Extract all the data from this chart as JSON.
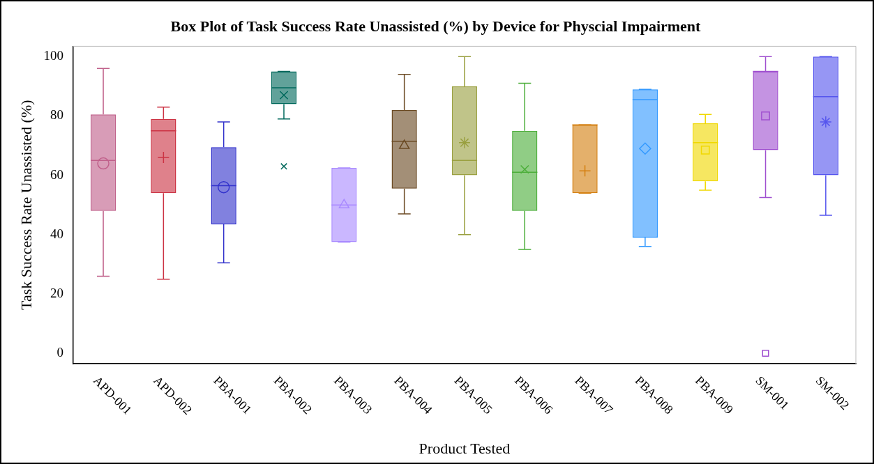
{
  "chart_data": {
    "type": "box",
    "title": "Box Plot of Task Success Rate Unassisted (%) by Device for Physcial Impairment",
    "xlabel": "Product Tested",
    "ylabel": "Task Success Rate Unassisted (%)",
    "categories": [
      "APD-001",
      "APD-002",
      "PBA-001",
      "PBA-002",
      "PBA-003",
      "PBA-004",
      "PBA-005",
      "PBA-006",
      "PBA-007",
      "PBA-008",
      "PBA-009",
      "SM-001",
      "SM-002"
    ],
    "colors": [
      "#c0608a",
      "#cc3344",
      "#3333cc",
      "#00695c",
      "#a98aff",
      "#6b4a23",
      "#9aa040",
      "#4cae3a",
      "#d47f10",
      "#3399ff",
      "#f0d800",
      "#a050d0",
      "#5555ee"
    ],
    "boxes": [
      {
        "low": 26,
        "q1": 48,
        "median": 65,
        "q3": 80.5,
        "high": 96,
        "mean": 64
      },
      {
        "low": 25,
        "q1": 54,
        "median": 75,
        "q3": 79,
        "high": 83,
        "mean": 66
      },
      {
        "low": 30.5,
        "q1": 43.5,
        "median": 56.5,
        "q3": 69.5,
        "high": 78,
        "mean": 56
      },
      {
        "low": 79,
        "q1": 84,
        "median": 89.5,
        "q3": 95,
        "high": 95,
        "mean": 87,
        "outliers": [
          63
        ]
      },
      {
        "low": 37.5,
        "q1": 37.5,
        "median": 50,
        "q3": 62.5,
        "high": 62.5,
        "mean": 50
      },
      {
        "low": 47,
        "q1": 55.5,
        "median": 71.5,
        "q3": 82,
        "high": 94,
        "mean": 70
      },
      {
        "low": 40,
        "q1": 60,
        "median": 65,
        "q3": 90,
        "high": 100,
        "mean": 71
      },
      {
        "low": 35,
        "q1": 48,
        "median": 61,
        "q3": 75,
        "high": 91,
        "mean": 62
      },
      {
        "low": 54,
        "q1": 54,
        "median": 77,
        "q3": 77,
        "high": 77,
        "mean": 61.5
      },
      {
        "low": 36,
        "q1": 39,
        "median": 85.5,
        "q3": 89,
        "high": 89,
        "mean": 69
      },
      {
        "low": 55,
        "q1": 58,
        "median": 71,
        "q3": 77.5,
        "high": 80.5,
        "mean": 68.5
      },
      {
        "low": 52.5,
        "q1": 68.5,
        "median": 95,
        "q3": 95,
        "high": 100,
        "mean": 80,
        "outliers": [
          0
        ]
      },
      {
        "low": 46.5,
        "q1": 60,
        "median": 86.5,
        "q3": 100,
        "high": 100,
        "mean": 78
      }
    ],
    "ylim": [
      -3.5,
      103.5
    ],
    "yticks": [
      0,
      20,
      40,
      60,
      80,
      100
    ],
    "grid": false,
    "legend": false
  }
}
